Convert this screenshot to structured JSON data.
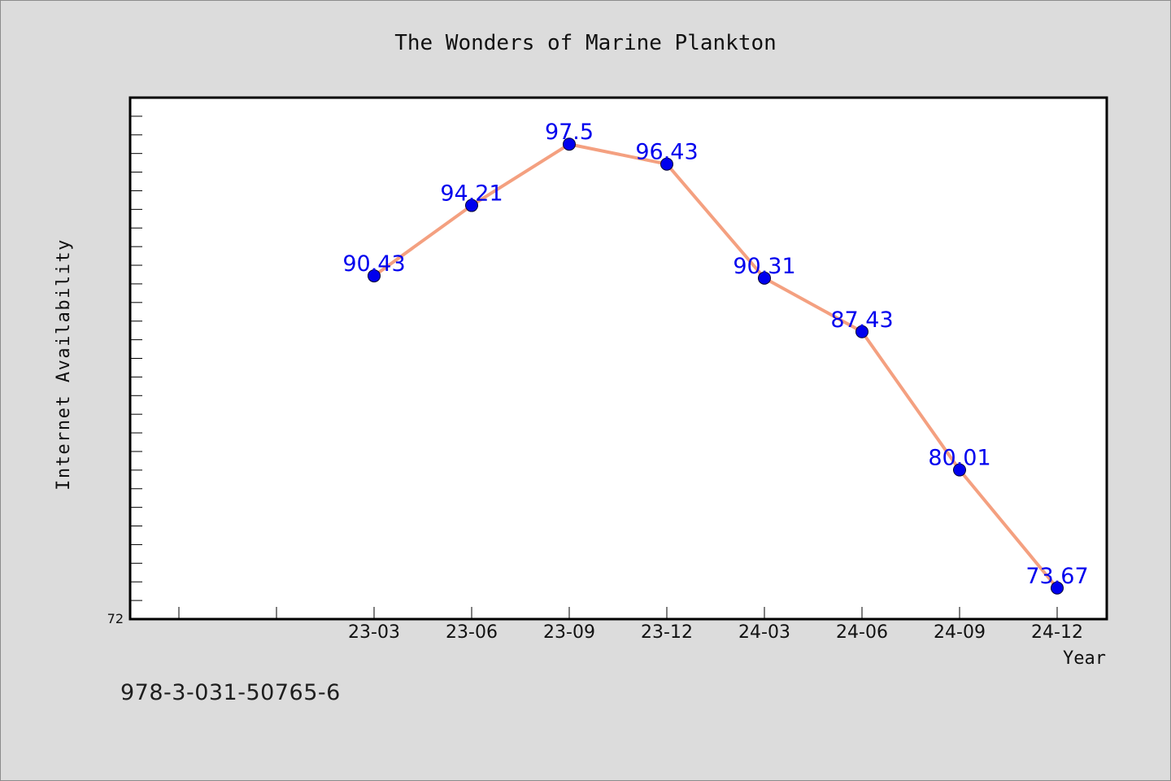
{
  "chart_data": {
    "type": "line",
    "title": "The Wonders of Marine Plankton",
    "xlabel": "Year",
    "ylabel": "Internet Availability",
    "categories": [
      "23-03",
      "23-06",
      "23-09",
      "23-12",
      "24-03",
      "24-06",
      "24-09",
      "24-12"
    ],
    "series": [
      {
        "values": [
          90.43,
          94.21,
          97.5,
          96.43,
          90.31,
          87.43,
          80.01,
          73.67
        ],
        "labels": [
          "90.43",
          "94.21",
          "97.5",
          "96.43",
          "90.31",
          "87.43",
          "80.01",
          "73.67"
        ]
      }
    ],
    "ylim": [
      72,
      100
    ],
    "y_tick_label": "72",
    "grid": false,
    "colors": {
      "line": "#f4a080",
      "marker": "#0000ee",
      "data_label": "#0000ee",
      "background": "#dcdcdc",
      "plot_background": "#ffffff"
    }
  },
  "footer": {
    "isbn": "978-3-031-50765-6"
  }
}
